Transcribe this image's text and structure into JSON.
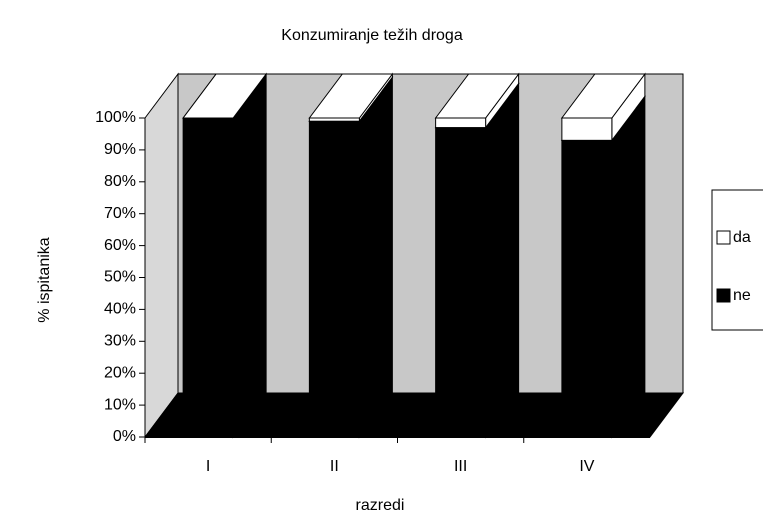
{
  "chart_data": {
    "type": "bar",
    "stacked": true,
    "title": "Konzumiranje težih droga",
    "x_label": "razredi",
    "y_label": "% ispitanika",
    "categories": [
      "I",
      "II",
      "III",
      "IV"
    ],
    "series": [
      {
        "name": "ne",
        "color": "#000000",
        "values": [
          100,
          99,
          97,
          93
        ]
      },
      {
        "name": "da",
        "color": "#ffffff",
        "values": [
          0,
          1,
          3,
          7
        ]
      }
    ],
    "ylim": [
      0,
      100
    ],
    "yticks": [
      {
        "value": 0,
        "label": "0%"
      },
      {
        "value": 10,
        "label": "10%"
      },
      {
        "value": 20,
        "label": "20%"
      },
      {
        "value": 30,
        "label": "30%"
      },
      {
        "value": 40,
        "label": "40%"
      },
      {
        "value": 50,
        "label": "50%"
      },
      {
        "value": 60,
        "label": "60%"
      },
      {
        "value": 70,
        "label": "70%"
      },
      {
        "value": 80,
        "label": "80%"
      },
      {
        "value": 90,
        "label": "90%"
      },
      {
        "value": 100,
        "label": "100%"
      }
    ],
    "legend": "right"
  }
}
